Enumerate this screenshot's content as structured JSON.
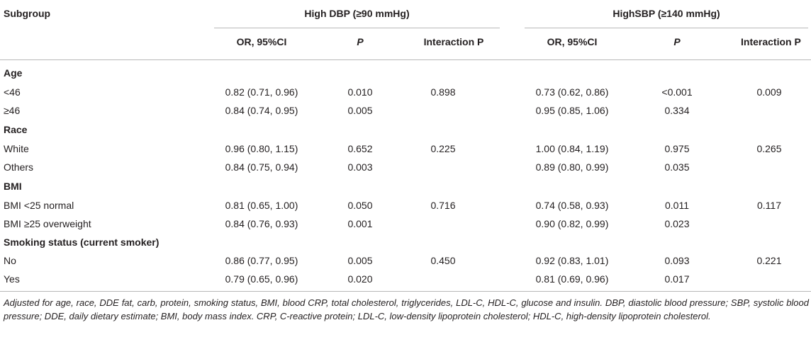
{
  "header": {
    "subgroup": "Subgroup",
    "group1": "High DBP (≥90 mmHg)",
    "group2": "HighSBP (≥140 mmHg)",
    "subheaders": [
      "OR, 95%CI",
      "P",
      "Interaction P",
      "OR, 95%CI",
      "P",
      "Interaction P"
    ]
  },
  "sections": [
    {
      "title": "Age",
      "rows": [
        {
          "label": "<46",
          "dbp_or": "0.82 (0.71, 0.96)",
          "dbp_p": "0.010",
          "dbp_int": "0.898",
          "sbp_or": "0.73 (0.62, 0.86)",
          "sbp_p": "<0.001",
          "sbp_int": "0.009"
        },
        {
          "label": "≥46",
          "dbp_or": "0.84 (0.74, 0.95)",
          "dbp_p": "0.005",
          "dbp_int": "",
          "sbp_or": "0.95 (0.85, 1.06)",
          "sbp_p": "0.334",
          "sbp_int": ""
        }
      ]
    },
    {
      "title": "Race",
      "rows": [
        {
          "label": "White",
          "dbp_or": "0.96 (0.80, 1.15)",
          "dbp_p": "0.652",
          "dbp_int": "0.225",
          "sbp_or": "1.00 (0.84, 1.19)",
          "sbp_p": "0.975",
          "sbp_int": "0.265"
        },
        {
          "label": "Others",
          "dbp_or": "0.84 (0.75, 0.94)",
          "dbp_p": "0.003",
          "dbp_int": "",
          "sbp_or": "0.89 (0.80, 0.99)",
          "sbp_p": "0.035",
          "sbp_int": ""
        }
      ]
    },
    {
      "title": "BMI",
      "rows": [
        {
          "label": "BMI <25 normal",
          "dbp_or": "0.81 (0.65, 1.00)",
          "dbp_p": "0.050",
          "dbp_int": "0.716",
          "sbp_or": "0.74 (0.58, 0.93)",
          "sbp_p": "0.011",
          "sbp_int": "0.117"
        },
        {
          "label": "BMI ≥25 overweight",
          "dbp_or": "0.84 (0.76, 0.93)",
          "dbp_p": "0.001",
          "dbp_int": "",
          "sbp_or": "0.90 (0.82, 0.99)",
          "sbp_p": "0.023",
          "sbp_int": ""
        }
      ]
    },
    {
      "title": "Smoking status (current smoker)",
      "rows": [
        {
          "label": "No",
          "dbp_or": "0.86 (0.77, 0.95)",
          "dbp_p": "0.005",
          "dbp_int": "0.450",
          "sbp_or": "0.92 (0.83, 1.01)",
          "sbp_p": "0.093",
          "sbp_int": "0.221"
        },
        {
          "label": "Yes",
          "dbp_or": "0.79 (0.65, 0.96)",
          "dbp_p": "0.020",
          "dbp_int": "",
          "sbp_or": "0.81 (0.69, 0.96)",
          "sbp_p": "0.017",
          "sbp_int": ""
        }
      ]
    }
  ],
  "footnote": "Adjusted for age, race, DDE fat, carb, protein, smoking status, BMI, blood CRP, total cholesterol, triglycerides, LDL-C, HDL-C, glucose and insulin. DBP, diastolic blood pressure; SBP, systolic blood pressure; DDE, daily dietary estimate; BMI, body mass index. CRP, C-reactive protein; LDL-C, low-density lipoprotein cholesterol; HDL-C, high-density lipoprotein cholesterol."
}
